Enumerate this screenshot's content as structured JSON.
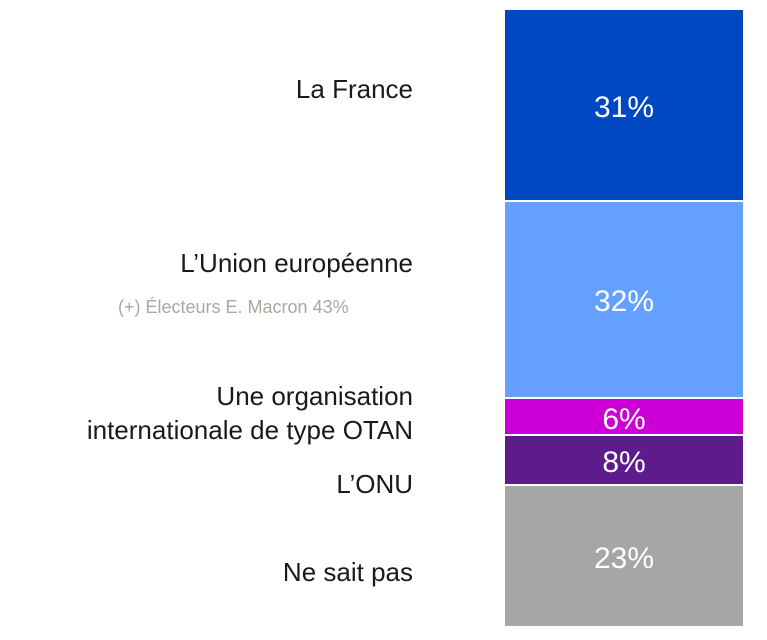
{
  "chart_data": {
    "type": "stacked-bar",
    "series": [
      {
        "name": "La France",
        "color": "#0047c2",
        "values": [
          31
        ],
        "value_labels": [
          "31%"
        ]
      },
      {
        "name": "L’Union européenne",
        "color": "#63a0ff",
        "values": [
          32
        ],
        "value_labels": [
          "32%"
        ]
      },
      {
        "name": "Une organisation internationale de type OTAN",
        "color": "#cc00d6",
        "values": [
          6
        ],
        "value_labels": [
          "6%"
        ]
      },
      {
        "name": "L’ONU",
        "color": "#5e1b8c",
        "values": [
          8
        ],
        "value_labels": [
          "8%"
        ]
      },
      {
        "name": "Ne sait pas",
        "color": "#a6a6a6",
        "values": [
          23
        ],
        "value_labels": [
          "23%"
        ]
      }
    ],
    "annotation": "(+) Électeurs E. Macron 43%",
    "ylim": [
      0,
      100
    ]
  }
}
